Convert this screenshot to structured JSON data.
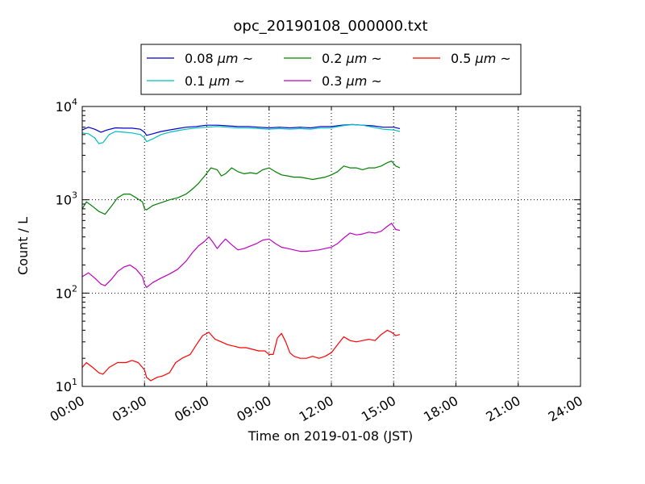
{
  "chart_data": {
    "type": "line",
    "title": "opc_20190108_000000.txt",
    "xlabel": "Time on 2019-01-08 (JST)",
    "ylabel": "Count / L",
    "yscale": "log",
    "xlim_hours": [
      0,
      24
    ],
    "ylim": [
      10,
      10000
    ],
    "grid": true,
    "legend_position": "top",
    "x_ticks": [
      "00:00",
      "03:00",
      "06:00",
      "09:00",
      "12:00",
      "15:00",
      "18:00",
      "21:00",
      "24:00"
    ],
    "y_ticks": [
      {
        "value": 10,
        "base": "10",
        "exp": "1"
      },
      {
        "value": 100,
        "base": "10",
        "exp": "2"
      },
      {
        "value": 1000,
        "base": "10",
        "exp": "3"
      },
      {
        "value": 10000,
        "base": "10",
        "exp": "4"
      }
    ],
    "series": [
      {
        "name_main": "0.08 ",
        "name_unit": "μm",
        "name_tail": " ~",
        "color": "#0000cc",
        "points": [
          [
            0.0,
            5600
          ],
          [
            0.3,
            6000
          ],
          [
            0.6,
            5700
          ],
          [
            0.9,
            5300
          ],
          [
            1.2,
            5600
          ],
          [
            1.6,
            5900
          ],
          [
            2.0,
            5850
          ],
          [
            2.4,
            5850
          ],
          [
            2.8,
            5700
          ],
          [
            3.0,
            5300
          ],
          [
            3.1,
            4900
          ],
          [
            3.4,
            5100
          ],
          [
            3.8,
            5400
          ],
          [
            4.2,
            5600
          ],
          [
            4.6,
            5800
          ],
          [
            5.0,
            6000
          ],
          [
            5.5,
            6100
          ],
          [
            6.0,
            6300
          ],
          [
            6.5,
            6300
          ],
          [
            7.0,
            6200
          ],
          [
            7.5,
            6100
          ],
          [
            8.0,
            6100
          ],
          [
            8.5,
            6000
          ],
          [
            9.0,
            5900
          ],
          [
            9.5,
            6000
          ],
          [
            10.0,
            5900
          ],
          [
            10.5,
            6000
          ],
          [
            11.0,
            5900
          ],
          [
            11.5,
            6100
          ],
          [
            12.0,
            6100
          ],
          [
            12.5,
            6300
          ],
          [
            13.0,
            6400
          ],
          [
            13.5,
            6300
          ],
          [
            14.0,
            6200
          ],
          [
            14.5,
            6000
          ],
          [
            15.0,
            6000
          ],
          [
            15.3,
            5800
          ]
        ]
      },
      {
        "name_main": "0.1 ",
        "name_unit": "μm",
        "name_tail": " ~",
        "color": "#00bfbf",
        "points": [
          [
            0.0,
            5200
          ],
          [
            0.3,
            5100
          ],
          [
            0.6,
            4600
          ],
          [
            0.8,
            4000
          ],
          [
            1.0,
            4100
          ],
          [
            1.3,
            5000
          ],
          [
            1.6,
            5400
          ],
          [
            2.0,
            5300
          ],
          [
            2.4,
            5200
          ],
          [
            2.8,
            5000
          ],
          [
            3.0,
            4600
          ],
          [
            3.1,
            4200
          ],
          [
            3.4,
            4500
          ],
          [
            3.8,
            5000
          ],
          [
            4.2,
            5300
          ],
          [
            4.6,
            5500
          ],
          [
            5.0,
            5700
          ],
          [
            5.5,
            5900
          ],
          [
            6.0,
            6000
          ],
          [
            6.5,
            6100
          ],
          [
            7.0,
            6000
          ],
          [
            7.5,
            5900
          ],
          [
            8.0,
            5900
          ],
          [
            8.5,
            5800
          ],
          [
            9.0,
            5700
          ],
          [
            9.5,
            5800
          ],
          [
            10.0,
            5700
          ],
          [
            10.5,
            5800
          ],
          [
            11.0,
            5700
          ],
          [
            11.5,
            5900
          ],
          [
            12.0,
            5900
          ],
          [
            12.5,
            6200
          ],
          [
            13.0,
            6400
          ],
          [
            13.5,
            6300
          ],
          [
            14.0,
            6000
          ],
          [
            14.5,
            5700
          ],
          [
            15.0,
            5600
          ],
          [
            15.3,
            5400
          ]
        ]
      },
      {
        "name_main": "0.2 ",
        "name_unit": "μm",
        "name_tail": " ~",
        "color": "#008000",
        "points": [
          [
            0.0,
            800
          ],
          [
            0.2,
            950
          ],
          [
            0.5,
            850
          ],
          [
            0.8,
            750
          ],
          [
            1.1,
            700
          ],
          [
            1.4,
            850
          ],
          [
            1.7,
            1050
          ],
          [
            2.0,
            1150
          ],
          [
            2.3,
            1150
          ],
          [
            2.6,
            1050
          ],
          [
            2.9,
            950
          ],
          [
            3.0,
            800
          ],
          [
            3.1,
            780
          ],
          [
            3.4,
            870
          ],
          [
            3.8,
            930
          ],
          [
            4.2,
            1000
          ],
          [
            4.6,
            1050
          ],
          [
            5.0,
            1150
          ],
          [
            5.3,
            1300
          ],
          [
            5.6,
            1500
          ],
          [
            5.9,
            1800
          ],
          [
            6.2,
            2200
          ],
          [
            6.5,
            2100
          ],
          [
            6.7,
            1800
          ],
          [
            6.9,
            1900
          ],
          [
            7.2,
            2200
          ],
          [
            7.5,
            2000
          ],
          [
            7.8,
            1900
          ],
          [
            8.1,
            1950
          ],
          [
            8.4,
            1900
          ],
          [
            8.7,
            2100
          ],
          [
            9.0,
            2200
          ],
          [
            9.3,
            2000
          ],
          [
            9.6,
            1850
          ],
          [
            9.9,
            1800
          ],
          [
            10.2,
            1750
          ],
          [
            10.5,
            1750
          ],
          [
            10.8,
            1700
          ],
          [
            11.1,
            1650
          ],
          [
            11.4,
            1700
          ],
          [
            11.7,
            1750
          ],
          [
            12.0,
            1850
          ],
          [
            12.3,
            2000
          ],
          [
            12.6,
            2300
          ],
          [
            12.9,
            2200
          ],
          [
            13.2,
            2200
          ],
          [
            13.5,
            2100
          ],
          [
            13.8,
            2200
          ],
          [
            14.1,
            2200
          ],
          [
            14.4,
            2300
          ],
          [
            14.7,
            2500
          ],
          [
            14.9,
            2600
          ],
          [
            15.1,
            2300
          ],
          [
            15.3,
            2200
          ]
        ]
      },
      {
        "name_main": "0.3 ",
        "name_unit": "μm",
        "name_tail": " ~",
        "color": "#bf00bf",
        "points": [
          [
            0.0,
            150
          ],
          [
            0.3,
            165
          ],
          [
            0.6,
            145
          ],
          [
            0.9,
            125
          ],
          [
            1.1,
            120
          ],
          [
            1.4,
            140
          ],
          [
            1.7,
            170
          ],
          [
            2.0,
            190
          ],
          [
            2.3,
            200
          ],
          [
            2.6,
            180
          ],
          [
            2.9,
            150
          ],
          [
            3.0,
            125
          ],
          [
            3.1,
            115
          ],
          [
            3.4,
            130
          ],
          [
            3.8,
            145
          ],
          [
            4.2,
            160
          ],
          [
            4.6,
            180
          ],
          [
            5.0,
            220
          ],
          [
            5.3,
            270
          ],
          [
            5.6,
            320
          ],
          [
            5.9,
            360
          ],
          [
            6.1,
            400
          ],
          [
            6.3,
            350
          ],
          [
            6.5,
            300
          ],
          [
            6.7,
            340
          ],
          [
            6.9,
            380
          ],
          [
            7.2,
            330
          ],
          [
            7.5,
            290
          ],
          [
            7.8,
            300
          ],
          [
            8.1,
            320
          ],
          [
            8.4,
            340
          ],
          [
            8.7,
            370
          ],
          [
            9.0,
            380
          ],
          [
            9.3,
            340
          ],
          [
            9.6,
            310
          ],
          [
            9.9,
            300
          ],
          [
            10.2,
            290
          ],
          [
            10.5,
            280
          ],
          [
            10.8,
            280
          ],
          [
            11.1,
            285
          ],
          [
            11.4,
            290
          ],
          [
            11.7,
            300
          ],
          [
            12.0,
            310
          ],
          [
            12.3,
            340
          ],
          [
            12.6,
            390
          ],
          [
            12.9,
            440
          ],
          [
            13.2,
            420
          ],
          [
            13.5,
            430
          ],
          [
            13.8,
            450
          ],
          [
            14.1,
            440
          ],
          [
            14.4,
            460
          ],
          [
            14.7,
            520
          ],
          [
            14.9,
            560
          ],
          [
            15.1,
            480
          ],
          [
            15.3,
            470
          ]
        ]
      },
      {
        "name_main": "0.5 ",
        "name_unit": "μm",
        "name_tail": " ~",
        "color": "#ff0000",
        "points": [
          [
            0.0,
            16
          ],
          [
            0.2,
            18
          ],
          [
            0.5,
            16
          ],
          [
            0.8,
            14
          ],
          [
            1.0,
            13.5
          ],
          [
            1.3,
            16
          ],
          [
            1.7,
            18
          ],
          [
            2.1,
            18
          ],
          [
            2.4,
            19
          ],
          [
            2.7,
            18
          ],
          [
            3.0,
            15
          ],
          [
            3.1,
            12.5
          ],
          [
            3.3,
            11.5
          ],
          [
            3.6,
            12.5
          ],
          [
            3.9,
            13
          ],
          [
            4.2,
            14
          ],
          [
            4.5,
            18
          ],
          [
            4.8,
            20
          ],
          [
            5.2,
            22
          ],
          [
            5.5,
            28
          ],
          [
            5.8,
            35
          ],
          [
            6.1,
            38
          ],
          [
            6.4,
            32
          ],
          [
            6.7,
            30
          ],
          [
            7.0,
            28
          ],
          [
            7.3,
            27
          ],
          [
            7.6,
            26
          ],
          [
            7.9,
            26
          ],
          [
            8.2,
            25
          ],
          [
            8.5,
            24
          ],
          [
            8.8,
            24
          ],
          [
            9.0,
            22
          ],
          [
            9.2,
            22
          ],
          [
            9.4,
            33
          ],
          [
            9.6,
            37
          ],
          [
            9.8,
            30
          ],
          [
            10.0,
            23
          ],
          [
            10.2,
            21
          ],
          [
            10.5,
            20
          ],
          [
            10.8,
            20
          ],
          [
            11.1,
            21
          ],
          [
            11.4,
            20
          ],
          [
            11.7,
            21
          ],
          [
            12.0,
            23
          ],
          [
            12.3,
            28
          ],
          [
            12.6,
            34
          ],
          [
            12.9,
            31
          ],
          [
            13.2,
            30
          ],
          [
            13.5,
            31
          ],
          [
            13.8,
            32
          ],
          [
            14.1,
            31
          ],
          [
            14.4,
            36
          ],
          [
            14.7,
            40
          ],
          [
            14.9,
            38
          ],
          [
            15.1,
            35
          ],
          [
            15.3,
            36
          ]
        ]
      }
    ]
  }
}
